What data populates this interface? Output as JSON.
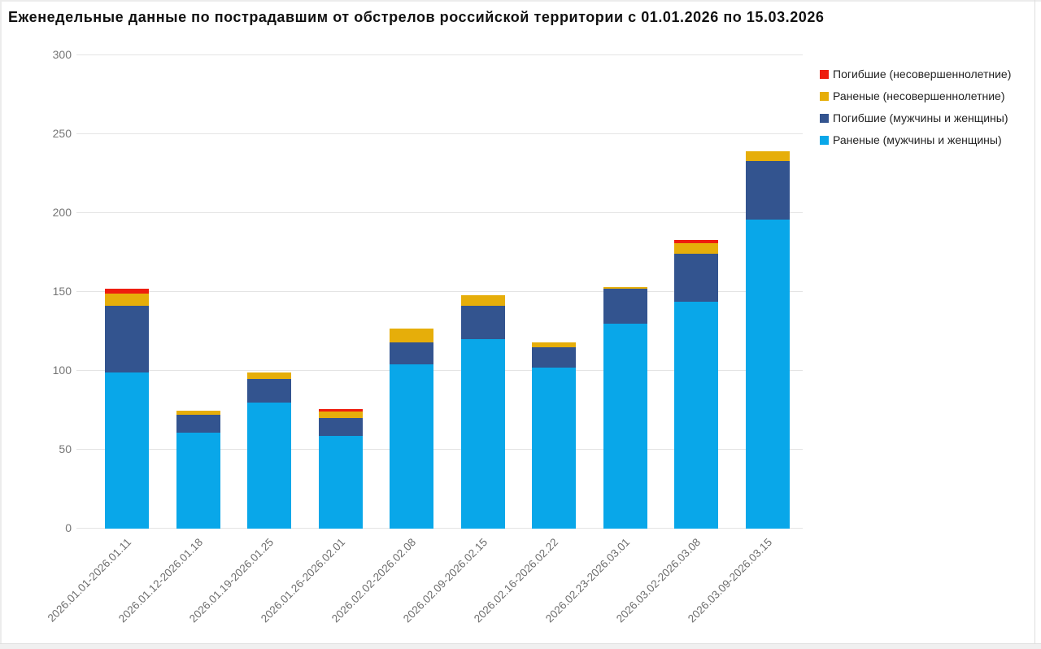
{
  "page": {
    "title": "Еженедельные данные по пострадавшим от обстрелов российской территории с 01.01.2026 по 15.03.2026"
  },
  "chart_data": {
    "type": "bar",
    "stacked": true,
    "title": "Еженедельные данные по пострадавшим от обстрелов российской территории с 01.01.2026 по 15.03.2026",
    "categories": [
      "2026.01.01-2026.01.11",
      "2026.01.12-2026.01.18",
      "2026.01.19-2026.01.25",
      "2026.01.26-2026.02.01",
      "2026.02.02-2026.02.08",
      "2026.02.09-2026.02.15",
      "2026.02.16-2026.02.22",
      "2026.02.23-2026.03.01",
      "2026.03.02-2026.03.08",
      "2026.03.09-2026.03.15"
    ],
    "series": [
      {
        "name": "Раненые (мужчины и женщины)",
        "color": "#09a7e9",
        "values": [
          99,
          61,
          80,
          59,
          104,
          120,
          102,
          130,
          144,
          196
        ]
      },
      {
        "name": "Погибшие (мужчины и женщины)",
        "color": "#33548f",
        "values": [
          42,
          11,
          15,
          11,
          14,
          21,
          13,
          22,
          30,
          37
        ]
      },
      {
        "name": "Раненые (несовершеннолетние)",
        "color": "#e6ae0a",
        "values": [
          8,
          3,
          4,
          4,
          9,
          7,
          3,
          1,
          7,
          6
        ]
      },
      {
        "name": "Погибшие (несовершеннолетние)",
        "color": "#ee1d0e",
        "values": [
          3,
          0,
          0,
          2,
          0,
          0,
          0,
          0,
          2,
          0
        ]
      }
    ],
    "legend_order": [
      "Погибшие (несовершеннолетние)",
      "Раненые (несовершеннолетние)",
      "Погибшие (мужчины и женщины)",
      "Раненые (мужчины и женщины)"
    ],
    "ylim": [
      0,
      300
    ],
    "yticks": [
      0,
      50,
      100,
      150,
      200,
      250,
      300
    ],
    "xlabel": "",
    "ylabel": "",
    "grid": true,
    "legend_position": "top-right"
  },
  "colors": {
    "grid": "#e4e4e4",
    "tick_label": "#757575",
    "xtick_label": "#6e6e6e",
    "legend_text": "#222222",
    "background": "#ffffff"
  }
}
